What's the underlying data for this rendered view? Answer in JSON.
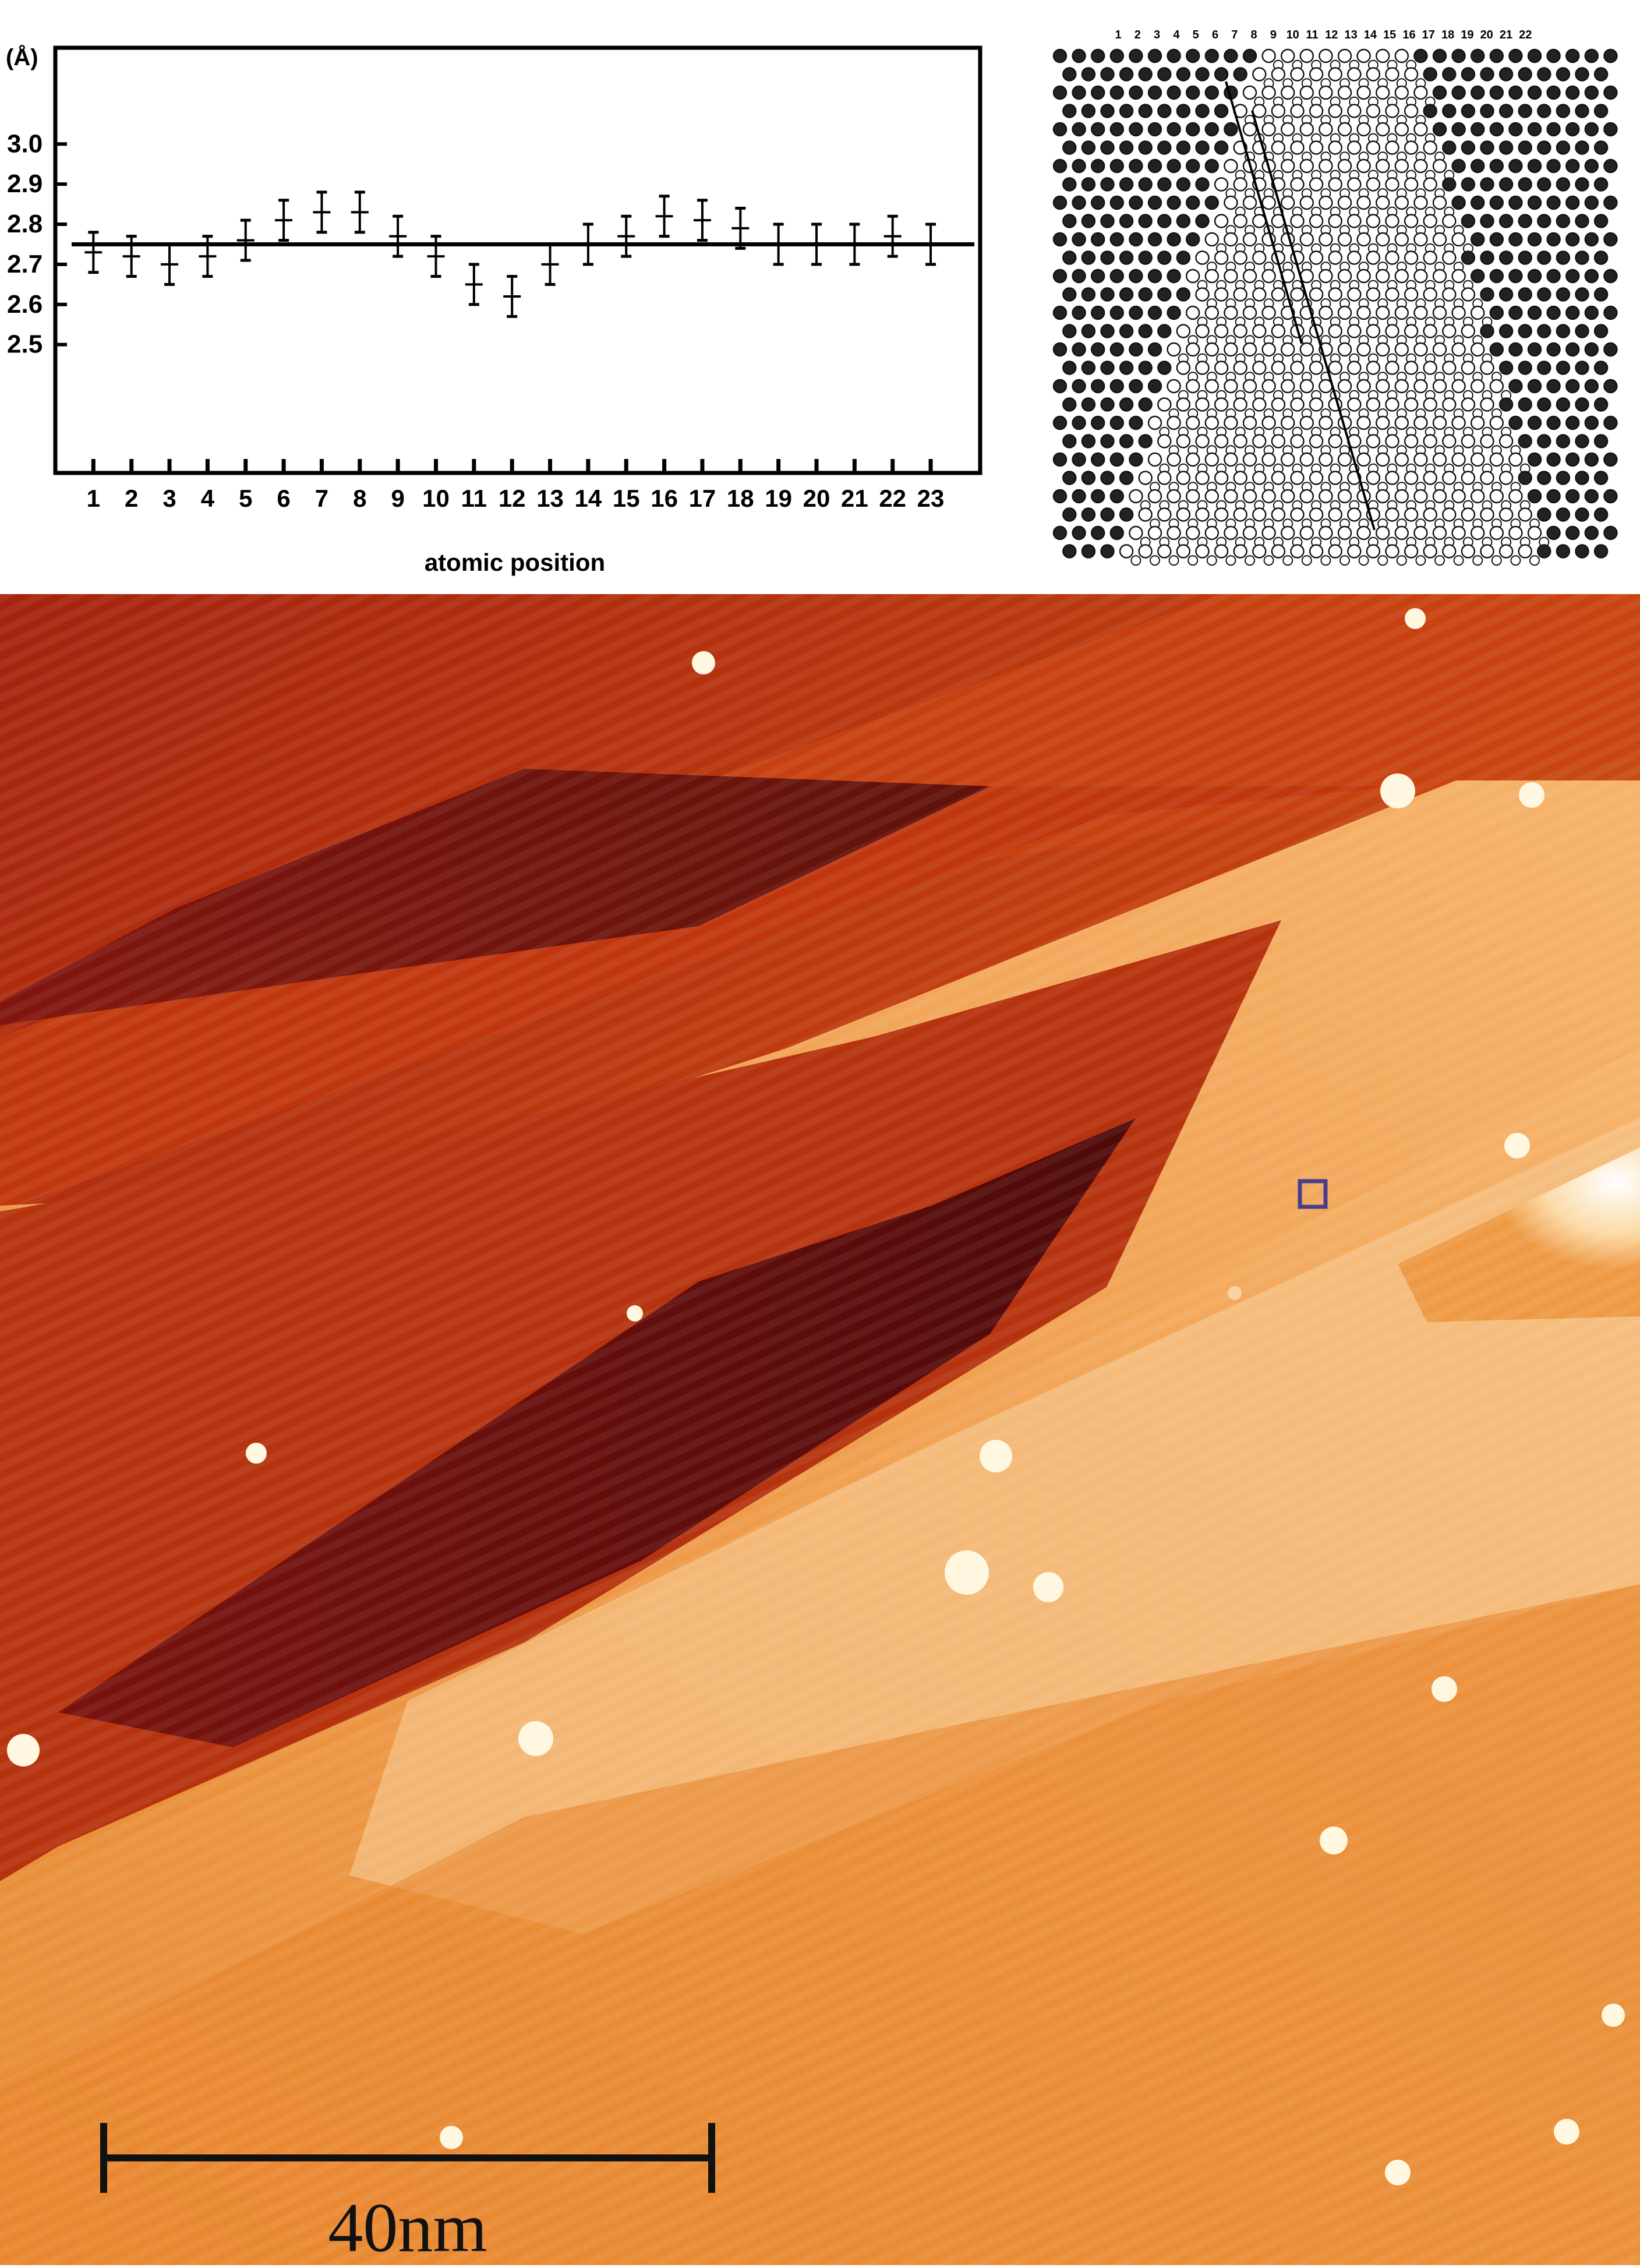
{
  "chart_data": [
    {
      "type": "scatter",
      "ylabel": "(Å)",
      "xlabel": "atomic position",
      "x": [
        1,
        2,
        3,
        4,
        5,
        6,
        7,
        8,
        9,
        10,
        11,
        12,
        13,
        14,
        15,
        16,
        17,
        18,
        19,
        20,
        21,
        22,
        23
      ],
      "y": [
        2.73,
        2.72,
        2.7,
        2.72,
        2.76,
        2.81,
        2.83,
        2.83,
        2.77,
        2.72,
        2.65,
        2.62,
        2.7,
        2.75,
        2.77,
        2.82,
        2.81,
        2.79,
        2.75,
        2.75,
        2.75,
        2.77,
        2.75
      ],
      "error": [
        0.05,
        0.05,
        0.05,
        0.05,
        0.05,
        0.05,
        0.05,
        0.05,
        0.05,
        0.05,
        0.05,
        0.05,
        0.05,
        0.05,
        0.05,
        0.05,
        0.05,
        0.05,
        0.05,
        0.05,
        0.05,
        0.05,
        0.05
      ],
      "reference_line": 2.75,
      "yticks": [
        "3.0",
        "2.9",
        "2.8",
        "2.7",
        "2.6",
        "2.5"
      ],
      "ylim": [
        2.18,
        3.24
      ],
      "xlim": [
        0,
        24.3
      ],
      "grid": false
    }
  ],
  "lattice": {
    "column_labels": [
      "1",
      "2",
      "3",
      "4",
      "5",
      "6",
      "7",
      "8",
      "9",
      "10",
      "11",
      "12",
      "13",
      "14",
      "15",
      "16",
      "17",
      "18",
      "19",
      "20",
      "21",
      "22"
    ]
  },
  "stm_image": {
    "scale_bar_label": "40nm",
    "colors": {
      "dark": "#5a0c0c",
      "mid": "#b8320f",
      "orange": "#e27424",
      "light": "#f8c98a",
      "marker": "#4a3e8c"
    }
  }
}
